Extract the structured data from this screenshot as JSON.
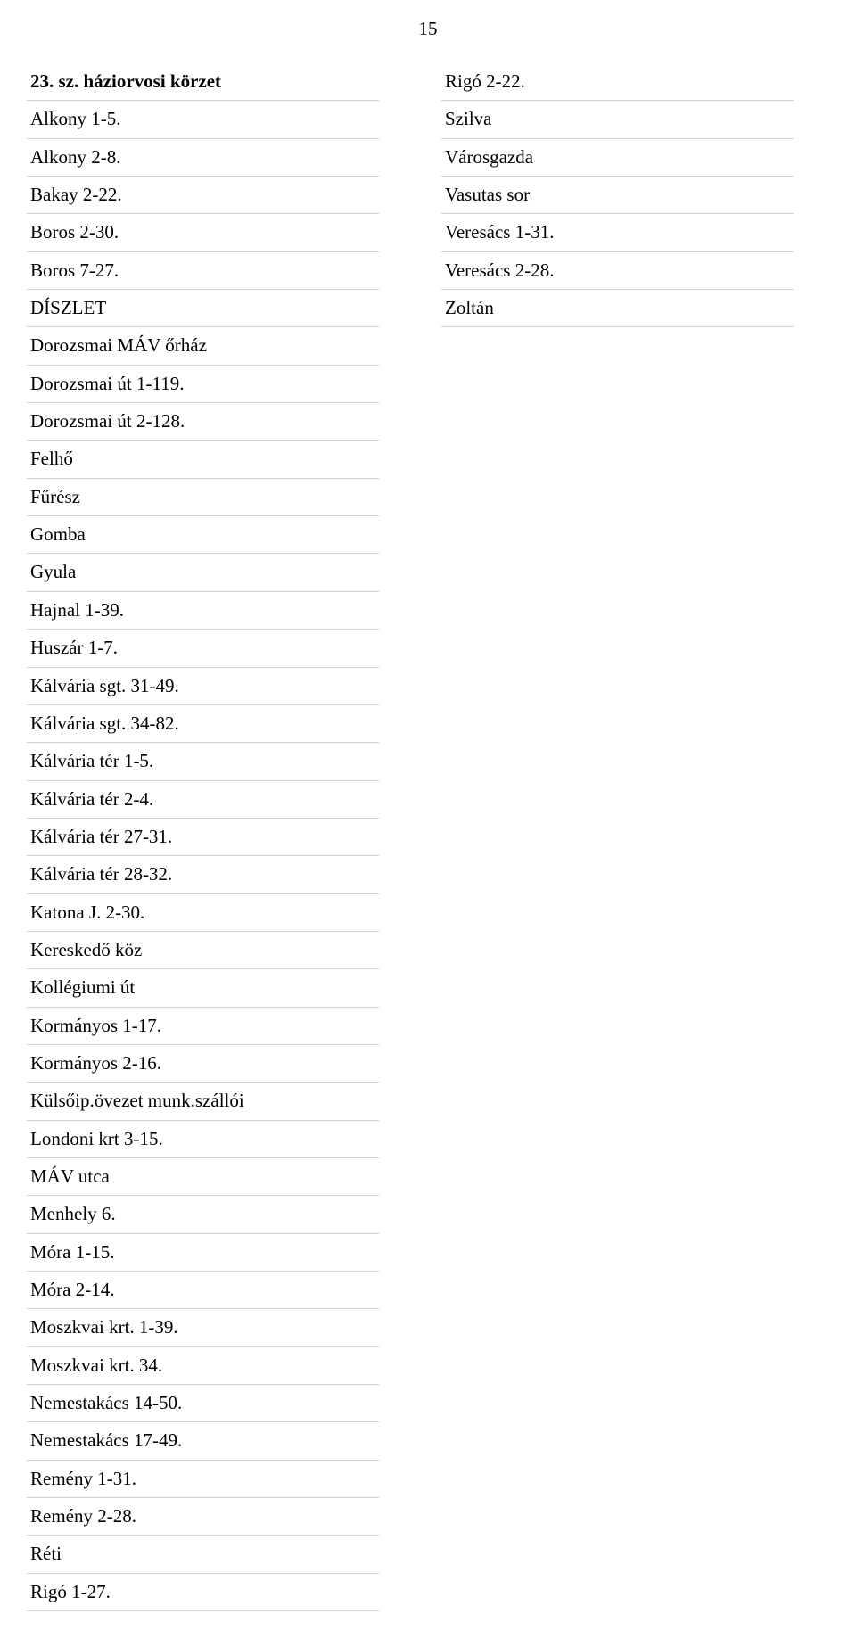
{
  "page_number": "15",
  "font": {
    "family": "Times New Roman",
    "base_size_pt": 16,
    "color": "#000000"
  },
  "border_color": "#d0d0d0",
  "background_color": "#ffffff",
  "left_column": [
    {
      "text": "23. sz. háziorvosi körzet",
      "bold": true
    },
    {
      "text": "Alkony 1-5."
    },
    {
      "text": "Alkony 2-8."
    },
    {
      "text": "Bakay 2-22."
    },
    {
      "text": "Boros 2-30."
    },
    {
      "text": "Boros 7-27."
    },
    {
      "text": "DÍSZLET"
    },
    {
      "text": "Dorozsmai MÁV őrház"
    },
    {
      "text": "Dorozsmai út 1-119."
    },
    {
      "text": "Dorozsmai út 2-128."
    },
    {
      "text": "Felhő"
    },
    {
      "text": "Fűrész"
    },
    {
      "text": "Gomba"
    },
    {
      "text": "Gyula"
    },
    {
      "text": "Hajnal 1-39."
    },
    {
      "text": "Huszár 1-7."
    },
    {
      "text": "Kálvária sgt. 31-49."
    },
    {
      "text": "Kálvária sgt. 34-82."
    },
    {
      "text": "Kálvária tér 1-5."
    },
    {
      "text": "Kálvária tér 2-4."
    },
    {
      "text": "Kálvária tér 27-31."
    },
    {
      "text": "Kálvária tér 28-32."
    },
    {
      "text": "Katona J. 2-30."
    },
    {
      "text": "Kereskedő köz"
    },
    {
      "text": "Kollégiumi út"
    },
    {
      "text": "Kormányos 1-17."
    },
    {
      "text": "Kormányos 2-16."
    },
    {
      "text": "Külsőip.övezet munk.szállói"
    },
    {
      "text": "Londoni krt 3-15."
    },
    {
      "text": "MÁV utca"
    },
    {
      "text": "Menhely 6."
    },
    {
      "text": "Móra 1-15."
    },
    {
      "text": "Móra 2-14."
    },
    {
      "text": "Moszkvai krt. 1-39."
    },
    {
      "text": "Moszkvai krt. 34."
    },
    {
      "text": "Nemestakács 14-50."
    },
    {
      "text": "Nemestakács 17-49."
    },
    {
      "text": "Remény 1-31."
    },
    {
      "text": "Remény 2-28."
    },
    {
      "text": "Réti"
    },
    {
      "text": "Rigó 1-27."
    }
  ],
  "right_column": [
    {
      "text": "Rigó 2-22."
    },
    {
      "text": "Szilva"
    },
    {
      "text": "Városgazda"
    },
    {
      "text": "Vasutas sor"
    },
    {
      "text": "Veresács 1-31."
    },
    {
      "text": "Veresács 2-28."
    },
    {
      "text": "Zoltán"
    }
  ]
}
